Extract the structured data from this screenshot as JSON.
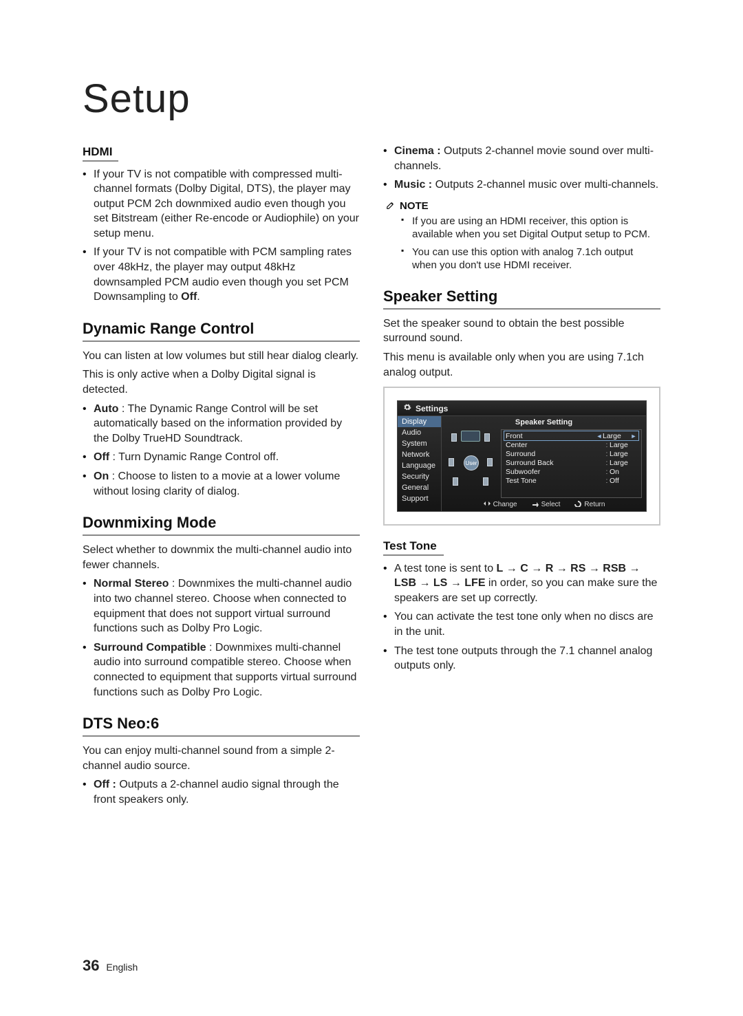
{
  "page": {
    "title": "Setup",
    "number": "36",
    "lang": "English"
  },
  "left": {
    "hdmi": {
      "heading": "HDMI",
      "b1_a": "If your TV is not compatible with compressed multi-channel formats (Dolby Digital, DTS), the player may output PCM 2ch downmixed audio even though you set Bitstream (either Re-encode or Audiophile) on your setup menu.",
      "b2_a": "If your TV is not compatible with PCM sampling rates over 48kHz, the player may output 48kHz downsampled PCM audio even though you set PCM Downsampling to ",
      "b2_b": "Off",
      "b2_c": "."
    },
    "drc": {
      "heading": "Dynamic Range Control",
      "p1": "You can listen at low volumes but still hear dialog clearly.",
      "p2": "This is only active when a Dolby Digital signal is detected.",
      "b1_k": "Auto",
      "b1_v": " : The Dynamic Range Control will be set automatically based on the information provided by the Dolby TrueHD Soundtrack.",
      "b2_k": "Off",
      "b2_v": " : Turn Dynamic Range Control off.",
      "b3_k": "On",
      "b3_v": " : Choose to listen to a movie at a lower volume without losing clarity of dialog."
    },
    "downmix": {
      "heading": "Downmixing Mode",
      "p1": "Select whether to downmix the multi-channel audio into fewer channels.",
      "b1_k": "Normal Stereo",
      "b1_v": " : Downmixes the multi-channel audio into two channel stereo. Choose when connected to equipment that does not support virtual surround functions such as Dolby Pro Logic.",
      "b2_k": "Surround Compatible",
      "b2_v": " : Downmixes multi-channel audio into surround compatible stereo. Choose when connected to equipment that supports virtual surround functions such as Dolby Pro Logic."
    },
    "dts": {
      "heading": "DTS Neo:6",
      "p1": "You can enjoy multi-channel sound from a simple 2-channel audio source.",
      "b1_k": "Off :",
      "b1_v": " Outputs a 2-channel audio signal through the front speakers only."
    }
  },
  "right": {
    "dts_cont": {
      "b1_k": "Cinema :",
      "b1_v": " Outputs 2-channel movie sound over multi-channels.",
      "b2_k": "Music :",
      "b2_v": " Outputs 2-channel music over multi-channels."
    },
    "note": {
      "label": "NOTE",
      "n1": "If you are using an HDMI receiver, this option is available when you set Digital Output setup to PCM.",
      "n2": "You can use this option with analog 7.1ch output when you don't use HDMI receiver."
    },
    "speaker": {
      "heading": "Speaker Setting",
      "p1": "Set the speaker sound to obtain the best possible surround sound.",
      "p2": "This menu is available only when you are using 7.1ch analog output."
    },
    "osd": {
      "title": "Settings",
      "panel_title": "Speaker Setting",
      "side": [
        "Display",
        "Audio",
        "System",
        "Network",
        "Language",
        "Security",
        "General",
        "Support"
      ],
      "side_selected": 0,
      "rows": [
        {
          "label": "Front",
          "value": "Large",
          "selected": true
        },
        {
          "label": "Center",
          "value": "Large"
        },
        {
          "label": "Surround",
          "value": "Large"
        },
        {
          "label": "Surround Back",
          "value": "Large"
        },
        {
          "label": "Subwoofer",
          "value": "On"
        },
        {
          "label": "Test Tone",
          "value": "Off"
        }
      ],
      "footer": {
        "change": "Change",
        "select": "Select",
        "return": "Return"
      },
      "user_label": "User"
    },
    "testtone": {
      "heading": "Test Tone",
      "b1_a": "A test tone is sent to ",
      "seq": [
        "L",
        "C",
        "R",
        "RS",
        "RSB",
        "LSB",
        "LS",
        "LFE"
      ],
      "b1_b": " in order, so you can make sure the speakers are set up correctly.",
      "b2": "You can activate the test tone only when no discs are in the unit.",
      "b3": "The test tone outputs through the 7.1 channel analog outputs only."
    }
  }
}
